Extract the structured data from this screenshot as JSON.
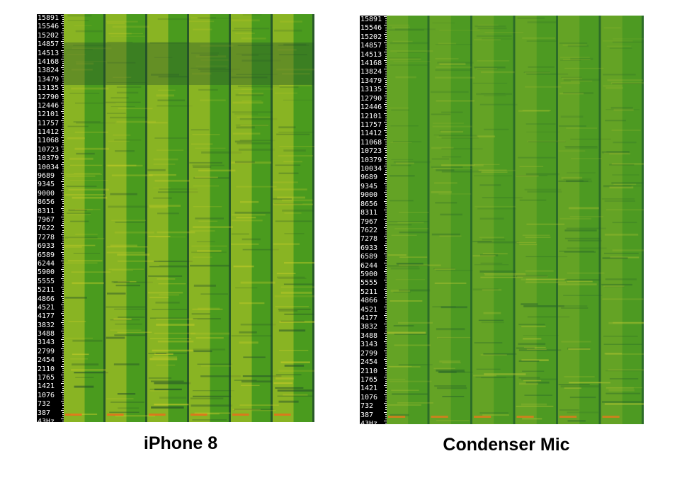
{
  "chart_data": [
    {
      "type": "heatmap",
      "title": "iPhone 8",
      "xlabel": "",
      "ylabel": "",
      "y_ticks": [
        "15891",
        "15546",
        "15202",
        "14857",
        "14513",
        "14168",
        "13824",
        "13479",
        "13135",
        "12790",
        "12446",
        "12101",
        "11757",
        "11412",
        "11068",
        "10723",
        "10379",
        "10034",
        "9689",
        "9345",
        "9000",
        "8656",
        "8311",
        "7967",
        "7622",
        "7278",
        "6933",
        "6589",
        "6244",
        "5900",
        "5555",
        "5211",
        "4866",
        "4521",
        "4177",
        "3832",
        "3488",
        "3143",
        "2799",
        "2454",
        "2110",
        "1765",
        "1421",
        "1076",
        "732",
        "387",
        "43Hz"
      ],
      "ylim": [
        43,
        15891
      ],
      "segments": 6,
      "colors": {
        "low": "#1f4a2a",
        "mid": "#4a9b1e",
        "high": "#d6d22a",
        "peak": "#ee6a1a"
      }
    },
    {
      "type": "heatmap",
      "title": "Condenser Mic",
      "xlabel": "",
      "ylabel": "",
      "y_ticks": [
        "15891",
        "15546",
        "15202",
        "14857",
        "14513",
        "14168",
        "13824",
        "13479",
        "13135",
        "12790",
        "12446",
        "12101",
        "11757",
        "11412",
        "11068",
        "10723",
        "10379",
        "10034",
        "9689",
        "9345",
        "9000",
        "8656",
        "8311",
        "7967",
        "7622",
        "7278",
        "6933",
        "6589",
        "6244",
        "5900",
        "5555",
        "5211",
        "4866",
        "4521",
        "4177",
        "3832",
        "3488",
        "3143",
        "2799",
        "2454",
        "2110",
        "1765",
        "1421",
        "1076",
        "732",
        "387",
        "43Hz"
      ],
      "ylim": [
        43,
        15891
      ],
      "segments": 6,
      "colors": {
        "low": "#24602a",
        "mid": "#4d9a22",
        "high": "#b7c532",
        "peak": "#e07a1c"
      }
    }
  ]
}
